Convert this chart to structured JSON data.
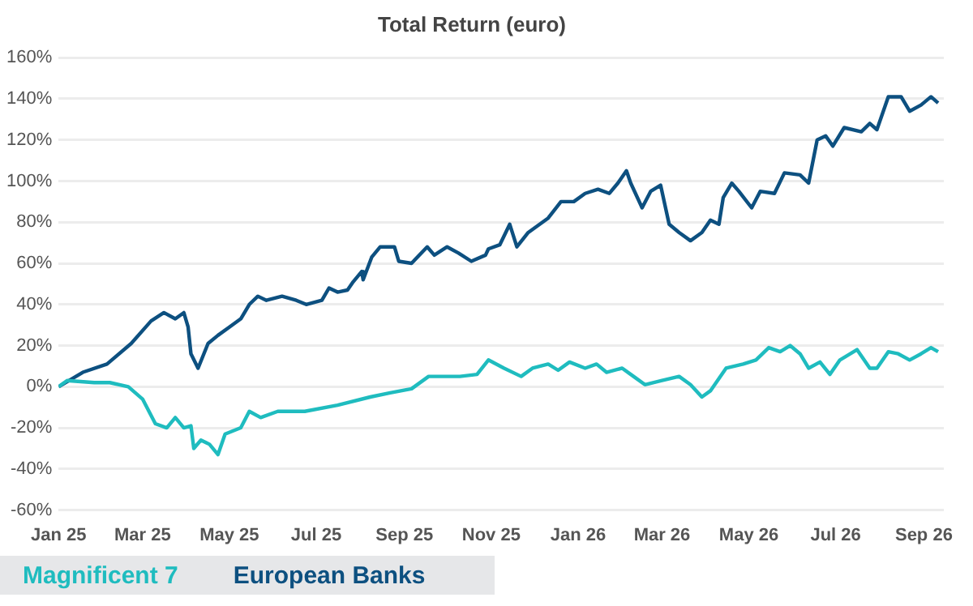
{
  "chart_data": {
    "type": "line",
    "title": "Total Return (euro)",
    "xlim": [
      "2025-01-01",
      "2026-09-15"
    ],
    "xticks": [
      {
        "value": "2025-01-01",
        "label": "Jan 25"
      },
      {
        "value": "2025-03-01",
        "label": "Mar 25"
      },
      {
        "value": "2025-05-01",
        "label": "May 25"
      },
      {
        "value": "2025-07-01",
        "label": "Jul 25"
      },
      {
        "value": "2025-09-01",
        "label": "Sep 25"
      },
      {
        "value": "2025-11-01",
        "label": "Nov 25"
      },
      {
        "value": "2026-01-01",
        "label": "Jan 26"
      },
      {
        "value": "2026-03-01",
        "label": "Mar 26"
      },
      {
        "value": "2026-05-01",
        "label": "May 26"
      },
      {
        "value": "2026-07-01",
        "label": "Jul 26"
      },
      {
        "value": "2026-09-01",
        "label": "Sep 26"
      }
    ],
    "ylim": [
      -60,
      160
    ],
    "yticks": [
      {
        "value": -60,
        "label": "-60%"
      },
      {
        "value": -40,
        "label": "-40%"
      },
      {
        "value": -20,
        "label": "-20%"
      },
      {
        "value": 0,
        "label": "0%"
      },
      {
        "value": 20,
        "label": "20%"
      },
      {
        "value": 40,
        "label": "40%"
      },
      {
        "value": 60,
        "label": "60%"
      },
      {
        "value": 80,
        "label": "80%"
      },
      {
        "value": 100,
        "label": "100%"
      },
      {
        "value": 120,
        "label": "120%"
      },
      {
        "value": 140,
        "label": "140%"
      },
      {
        "value": 160,
        "label": "160%"
      }
    ],
    "grid": "y",
    "legend": "bottom",
    "marker": "none",
    "line_style": "solid",
    "series": [
      {
        "name": "Magnificent 7",
        "color": "#1fbcbf",
        "x": [
          "2025-01-01",
          "2025-01-07",
          "2025-01-26",
          "2025-02-06",
          "2025-02-19",
          "2025-03-01",
          "2025-03-10",
          "2025-03-18",
          "2025-03-24",
          "2025-03-30",
          "2025-04-04",
          "2025-04-06",
          "2025-04-11",
          "2025-04-17",
          "2025-04-23",
          "2025-04-28",
          "2025-05-09",
          "2025-05-15",
          "2025-05-23",
          "2025-06-04",
          "2025-06-23",
          "2025-07-16",
          "2025-08-08",
          "2025-08-22",
          "2025-09-06",
          "2025-09-18",
          "2025-10-10",
          "2025-10-22",
          "2025-10-30",
          "2025-11-10",
          "2025-11-22",
          "2025-11-30",
          "2025-12-11",
          "2025-12-18",
          "2025-12-26",
          "2026-01-06",
          "2026-01-14",
          "2026-01-21",
          "2026-02-01",
          "2026-02-09",
          "2026-02-17",
          "2026-03-01",
          "2026-03-13",
          "2026-03-21",
          "2026-03-29",
          "2026-04-04",
          "2026-04-15",
          "2026-04-27",
          "2026-05-06",
          "2026-05-15",
          "2026-05-23",
          "2026-05-30",
          "2026-06-06",
          "2026-06-12",
          "2026-06-20",
          "2026-06-27",
          "2026-07-04",
          "2026-07-16",
          "2026-07-25",
          "2026-07-30",
          "2026-08-07",
          "2026-08-14",
          "2026-08-22",
          "2026-08-30",
          "2026-09-06",
          "2026-09-11"
        ],
        "values": [
          0,
          3,
          2,
          2,
          0,
          -6,
          -18,
          -20,
          -15,
          -20,
          -19,
          -30,
          -26,
          -28,
          -33,
          -23,
          -20,
          -12,
          -15,
          -12,
          -12,
          -9,
          -5,
          -3,
          -1,
          5,
          5,
          6,
          13,
          9,
          5,
          9,
          11,
          8,
          12,
          9,
          11,
          7,
          9,
          5,
          1,
          3,
          5,
          1,
          -5,
          -2,
          9,
          11,
          13,
          19,
          17,
          20,
          16,
          9,
          12,
          6,
          13,
          18,
          9,
          9,
          17,
          16,
          13,
          16,
          19,
          17
        ]
      },
      {
        "name": "European Banks",
        "color": "#0d5080",
        "x": [
          "2025-01-01",
          "2025-01-18",
          "2025-02-04",
          "2025-02-21",
          "2025-03-07",
          "2025-03-16",
          "2025-03-24",
          "2025-03-30",
          "2025-04-02",
          "2025-04-04",
          "2025-04-09",
          "2025-04-16",
          "2025-04-23",
          "2025-05-01",
          "2025-05-09",
          "2025-05-15",
          "2025-05-21",
          "2025-05-27",
          "2025-06-07",
          "2025-06-17",
          "2025-06-24",
          "2025-07-05",
          "2025-07-10",
          "2025-07-16",
          "2025-07-23",
          "2025-07-27",
          "2025-08-02",
          "2025-08-03",
          "2025-08-09",
          "2025-08-15",
          "2025-08-25",
          "2025-08-28",
          "2025-09-06",
          "2025-09-17",
          "2025-09-22",
          "2025-10-01",
          "2025-10-09",
          "2025-10-18",
          "2025-10-28",
          "2025-10-30",
          "2025-11-07",
          "2025-11-14",
          "2025-11-19",
          "2025-11-27",
          "2025-12-11",
          "2025-12-20",
          "2025-12-29",
          "2026-01-06",
          "2026-01-15",
          "2026-01-23",
          "2026-01-29",
          "2026-02-04",
          "2026-02-07",
          "2026-02-15",
          "2026-02-21",
          "2026-02-28",
          "2026-03-06",
          "2026-03-13",
          "2026-03-21",
          "2026-03-29",
          "2026-04-04",
          "2026-04-10",
          "2026-04-13",
          "2026-04-19",
          "2026-04-24",
          "2026-05-03",
          "2026-05-09",
          "2026-05-19",
          "2026-05-26",
          "2026-06-06",
          "2026-06-12",
          "2026-06-18",
          "2026-06-24",
          "2026-06-29",
          "2026-07-07",
          "2026-07-19",
          "2026-07-25",
          "2026-07-30",
          "2026-08-07",
          "2026-08-16",
          "2026-08-22",
          "2026-08-30",
          "2026-09-06",
          "2026-09-11"
        ],
        "values": [
          0,
          7,
          11,
          21,
          32,
          36,
          33,
          36,
          29,
          16,
          9,
          21,
          25,
          29,
          33,
          40,
          44,
          42,
          44,
          42,
          40,
          42,
          48,
          46,
          47,
          51,
          56,
          52,
          63,
          68,
          68,
          61,
          60,
          68,
          64,
          68,
          65,
          61,
          64,
          67,
          69,
          79,
          68,
          75,
          82,
          90,
          90,
          94,
          96,
          94,
          99,
          105,
          99,
          87,
          95,
          98,
          79,
          75,
          71,
          75,
          81,
          79,
          92,
          99,
          95,
          87,
          95,
          94,
          104,
          103,
          99,
          120,
          122,
          117,
          126,
          124,
          128,
          125,
          141,
          141,
          134,
          137,
          141,
          138
        ]
      }
    ]
  }
}
